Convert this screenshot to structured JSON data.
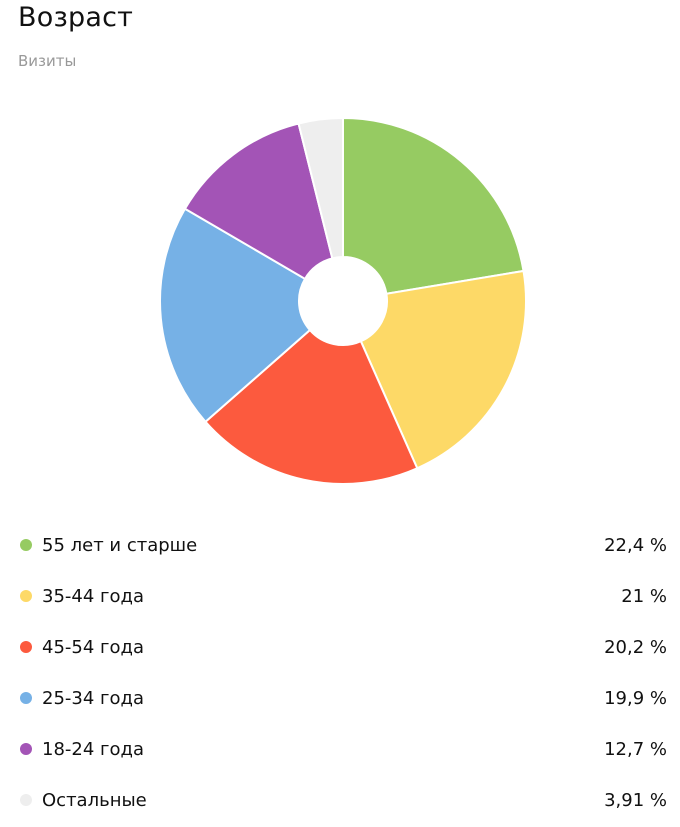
{
  "header": {
    "title": "Возраст",
    "subtitle": "Визиты"
  },
  "chart_data": {
    "type": "pie",
    "donut": true,
    "title": "Возраст",
    "subtitle": "Визиты",
    "categories": [
      "55 лет и старше",
      "35-44 года",
      "45-54 года",
      "25-34 года",
      "18-24 года",
      "Остальные"
    ],
    "values": [
      22.4,
      21,
      20.2,
      19.9,
      12.7,
      3.91
    ],
    "value_labels": [
      "22,4 %",
      "21 %",
      "20,2 %",
      "19,9 %",
      "12,7 %",
      "3,91 %"
    ],
    "colors": [
      "#96cb62",
      "#fdd967",
      "#fc5a3e",
      "#76b1e6",
      "#a354b6",
      "#eeeeee"
    ],
    "legend_position": "bottom",
    "unit": "%"
  }
}
